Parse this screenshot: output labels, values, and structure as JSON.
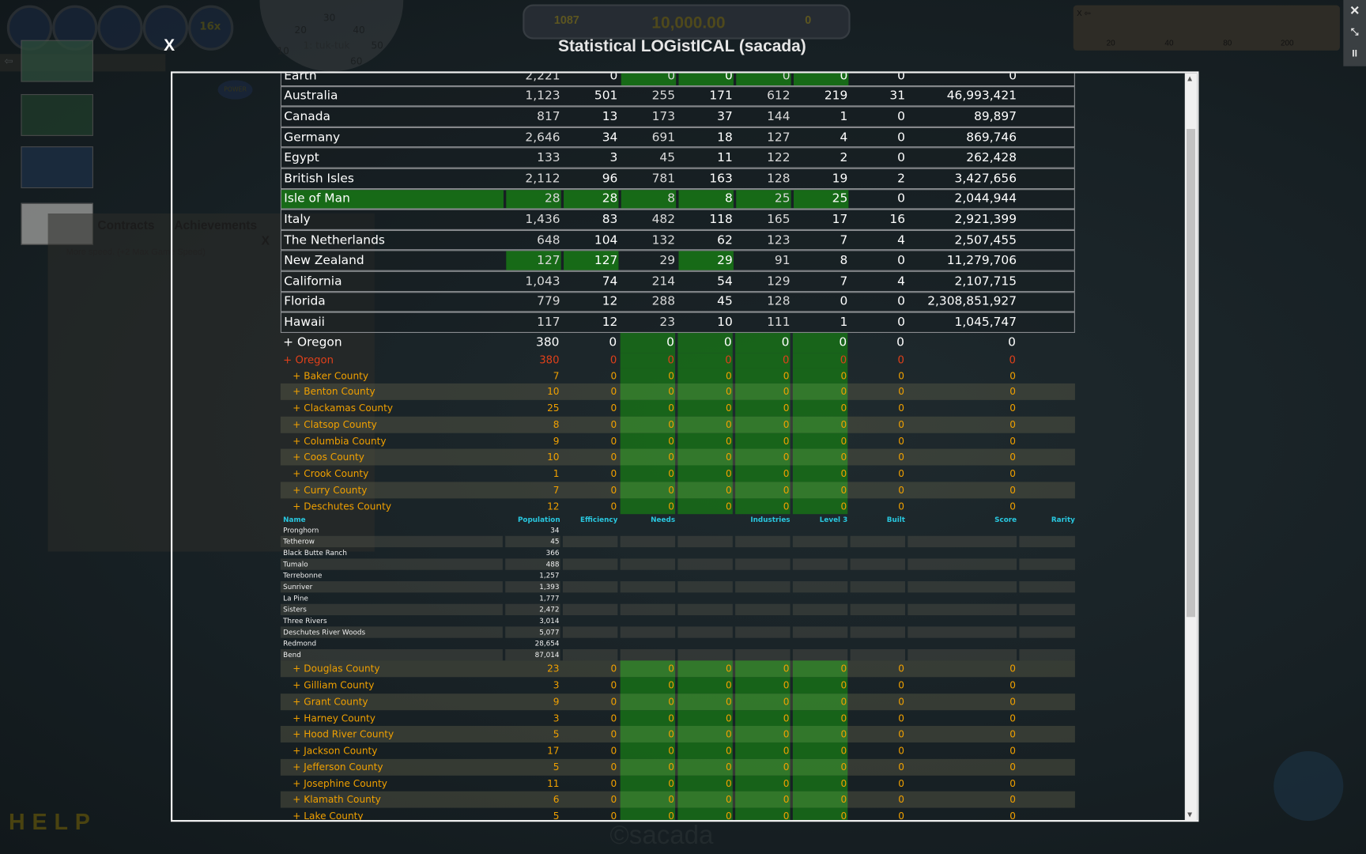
{
  "window": {
    "title": "Statistical LOGistICAL (sacada)",
    "close_label": "X"
  },
  "background": {
    "toolbar_speed": "16x",
    "gauge": {
      "title": "1: tuk-tuk",
      "ticks": [
        "10",
        "20",
        "30",
        "40",
        "50",
        "60"
      ],
      "power_label": "POWER"
    },
    "score_panel": {
      "left": "1087",
      "money": "10,000.00",
      "right": "0"
    },
    "speed_panel": {
      "back": "X ⇦",
      "ticks": [
        "20",
        "40",
        "80",
        "200"
      ]
    },
    "window_controls": {
      "close": "✕",
      "shrink": "⤡",
      "pause": "II"
    },
    "tabs": [
      "Contracts",
      "Achievements",
      "X"
    ],
    "achievement_text": "More speed. (+2 Max Game Speed)",
    "help": "HELP",
    "watermark": "©sacada"
  },
  "colors": {
    "highlight_green": "#176a17",
    "county_text": "#f0a000",
    "selected_text": "#e0401a",
    "header_text": "#29c8e0"
  },
  "table": {
    "headers": [
      "Name",
      "Population",
      "Efficiency",
      "Needs",
      "",
      "Industries",
      "Level 3",
      "Built",
      "Score",
      "Rarity"
    ],
    "countries": [
      {
        "name": "Earth",
        "values": [
          "2,221",
          "0",
          "0",
          "0",
          "0",
          "0",
          "0",
          "0"
        ],
        "green": [
          3,
          4,
          5,
          6
        ]
      },
      {
        "name": "Australia",
        "values": [
          "1,123",
          "501",
          "255",
          "171",
          "612",
          "219",
          "31",
          "46,993,421"
        ],
        "green": []
      },
      {
        "name": "Canada",
        "values": [
          "817",
          "13",
          "173",
          "37",
          "144",
          "1",
          "0",
          "89,897"
        ],
        "green": []
      },
      {
        "name": "Germany",
        "values": [
          "2,646",
          "34",
          "691",
          "18",
          "127",
          "4",
          "0",
          "869,746"
        ],
        "green": []
      },
      {
        "name": "Egypt",
        "values": [
          "133",
          "3",
          "45",
          "11",
          "122",
          "2",
          "0",
          "262,428"
        ],
        "green": []
      },
      {
        "name": "British Isles",
        "values": [
          "2,112",
          "96",
          "781",
          "163",
          "128",
          "19",
          "2",
          "3,427,656"
        ],
        "green": []
      },
      {
        "name": "Isle of Man",
        "values": [
          "28",
          "28",
          "8",
          "8",
          "25",
          "25",
          "0",
          "2,044,944"
        ],
        "green": [
          0,
          1,
          2,
          3,
          4,
          5,
          6
        ]
      },
      {
        "name": "Italy",
        "values": [
          "1,436",
          "83",
          "482",
          "118",
          "165",
          "17",
          "16",
          "2,921,399"
        ],
        "green": []
      },
      {
        "name": "The Netherlands",
        "values": [
          "648",
          "104",
          "132",
          "62",
          "123",
          "7",
          "4",
          "2,507,455"
        ],
        "green": []
      },
      {
        "name": "New Zealand",
        "values": [
          "127",
          "127",
          "29",
          "29",
          "91",
          "8",
          "0",
          "11,279,706"
        ],
        "green": [
          1,
          2,
          4
        ]
      },
      {
        "name": "California",
        "values": [
          "1,043",
          "74",
          "214",
          "54",
          "129",
          "7",
          "4",
          "2,107,715"
        ],
        "green": []
      },
      {
        "name": "Florida",
        "values": [
          "779",
          "12",
          "288",
          "45",
          "128",
          "0",
          "0",
          "2,308,851,927"
        ],
        "green": []
      },
      {
        "name": "Hawaii",
        "values": [
          "117",
          "12",
          "23",
          "10",
          "111",
          "1",
          "0",
          "1,045,747"
        ],
        "green": []
      }
    ],
    "oregon_main": {
      "name": "+ Oregon",
      "values": [
        "380",
        "0",
        "0",
        "0",
        "0",
        "0",
        "0",
        "0"
      ]
    },
    "oregon_selected": {
      "name": "+ Oregon",
      "values": [
        "380",
        "0",
        "0",
        "0",
        "0",
        "0",
        "0",
        "0"
      ]
    },
    "counties_a": [
      {
        "name": "+ Baker County",
        "population": "7"
      },
      {
        "name": "+ Benton County",
        "population": "10"
      },
      {
        "name": "+ Clackamas County",
        "population": "25"
      },
      {
        "name": "+ Clatsop County",
        "population": "8"
      },
      {
        "name": "+ Columbia County",
        "population": "9"
      },
      {
        "name": "+ Coos County",
        "population": "10"
      },
      {
        "name": "+ Crook County",
        "population": "1"
      },
      {
        "name": "+ Curry County",
        "population": "7"
      },
      {
        "name": "+ Deschutes County",
        "population": "12"
      }
    ],
    "county_zero": "0",
    "towns": [
      {
        "name": "Pronghorn",
        "population": "34"
      },
      {
        "name": "Tetherow",
        "population": "45"
      },
      {
        "name": "Black Butte Ranch",
        "population": "366"
      },
      {
        "name": "Tumalo",
        "population": "488"
      },
      {
        "name": "Terrebonne",
        "population": "1,257"
      },
      {
        "name": "Sunriver",
        "population": "1,393"
      },
      {
        "name": "La Pine",
        "population": "1,777"
      },
      {
        "name": "Sisters",
        "population": "2,472"
      },
      {
        "name": "Three Rivers",
        "population": "3,014"
      },
      {
        "name": "Deschutes River Woods",
        "population": "5,077"
      },
      {
        "name": "Redmond",
        "population": "28,654"
      },
      {
        "name": "Bend",
        "population": "87,014"
      }
    ],
    "counties_b": [
      {
        "name": "+ Douglas County",
        "population": "23"
      },
      {
        "name": "+ Gilliam County",
        "population": "3"
      },
      {
        "name": "+ Grant County",
        "population": "9"
      },
      {
        "name": "+ Harney County",
        "population": "3"
      },
      {
        "name": "+ Hood River County",
        "population": "5"
      },
      {
        "name": "+ Jackson County",
        "population": "17"
      },
      {
        "name": "+ Jefferson County",
        "population": "5"
      },
      {
        "name": "+ Josephine County",
        "population": "11"
      },
      {
        "name": "+ Klamath County",
        "population": "6"
      },
      {
        "name": "+ Lake County",
        "population": "5"
      }
    ]
  }
}
